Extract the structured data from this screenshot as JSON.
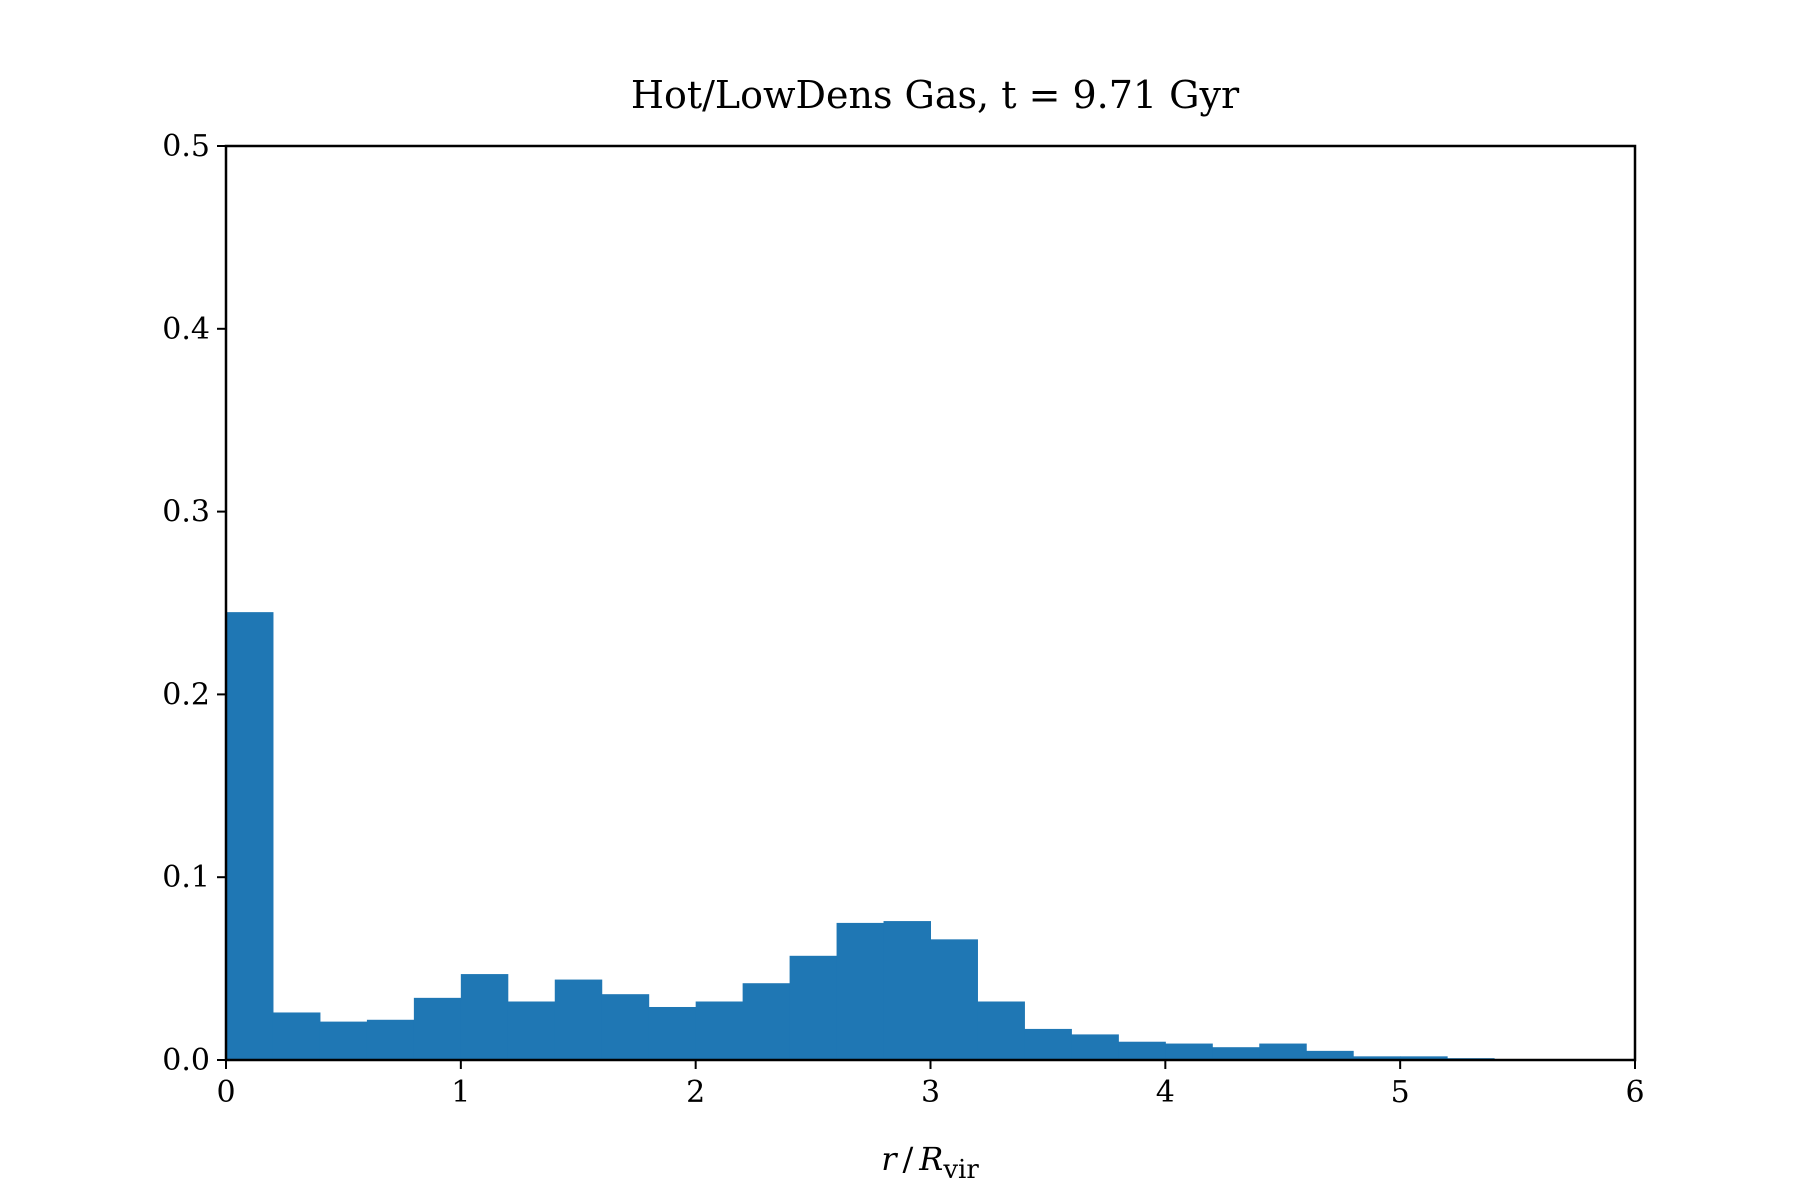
{
  "chart_data": {
    "type": "bar",
    "title": "Hot/LowDens Gas, t = 9.71 Gyr",
    "xlabel": {
      "var": "r",
      "slash": "/",
      "R": "R",
      "sub": "vir"
    },
    "ylabel": "",
    "xlim": [
      0,
      6
    ],
    "ylim": [
      0,
      0.5
    ],
    "xticks": [
      "0",
      "1",
      "2",
      "3",
      "4",
      "5",
      "6"
    ],
    "yticks": [
      "0.0",
      "0.1",
      "0.2",
      "0.3",
      "0.4",
      "0.5"
    ],
    "grid": false,
    "color": "#1f77b4",
    "bin_width": 0.2,
    "bin_starts": [
      0.0,
      0.2,
      0.4,
      0.6,
      0.8,
      1.0,
      1.2,
      1.4,
      1.6,
      1.8,
      2.0,
      2.2,
      2.4,
      2.6,
      2.8,
      3.0,
      3.2,
      3.4,
      3.6,
      3.8,
      4.0,
      4.2,
      4.4,
      4.6,
      4.8,
      5.0,
      5.2,
      5.4,
      5.6,
      5.8
    ],
    "values": [
      0.245,
      0.026,
      0.021,
      0.022,
      0.034,
      0.047,
      0.032,
      0.044,
      0.036,
      0.029,
      0.032,
      0.042,
      0.057,
      0.075,
      0.076,
      0.066,
      0.032,
      0.017,
      0.014,
      0.01,
      0.009,
      0.007,
      0.009,
      0.005,
      0.002,
      0.002,
      0.001,
      0.0,
      0.0,
      0.0
    ]
  }
}
